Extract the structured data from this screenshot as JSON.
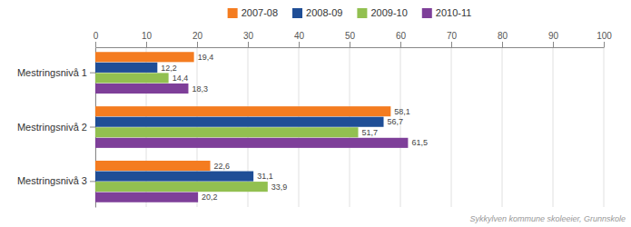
{
  "chart_data": {
    "type": "bar",
    "orientation": "horizontal",
    "categories": [
      "Mestringsnivå 1",
      "Mestringsnivå 2",
      "Mestringsnivå 3"
    ],
    "series": [
      {
        "name": "2007-08",
        "color": "#f47c20",
        "values": [
          19.4,
          58.1,
          22.6
        ],
        "value_labels": [
          "19,4",
          "58,1",
          "22,6"
        ]
      },
      {
        "name": "2008-09",
        "color": "#1f4e96",
        "values": [
          12.2,
          56.7,
          31.1
        ],
        "value_labels": [
          "12,2",
          "56,7",
          "31,1"
        ]
      },
      {
        "name": "2009-10",
        "color": "#92c050",
        "values": [
          14.4,
          51.7,
          33.9
        ],
        "value_labels": [
          "14,4",
          "51,7",
          "33,9"
        ]
      },
      {
        "name": "2010-11",
        "color": "#7e3f99",
        "values": [
          18.3,
          61.5,
          20.2
        ],
        "value_labels": [
          "18,3",
          "61,5",
          "20,2"
        ]
      }
    ],
    "xlim": [
      0,
      100
    ],
    "xticks": [
      0,
      10,
      20,
      30,
      40,
      50,
      60,
      70,
      80,
      90,
      100
    ],
    "grid": true,
    "legend": "top",
    "data_labels": true,
    "annotations": [
      "Sykkylven kommune skoleeier, Grunnskole"
    ]
  }
}
